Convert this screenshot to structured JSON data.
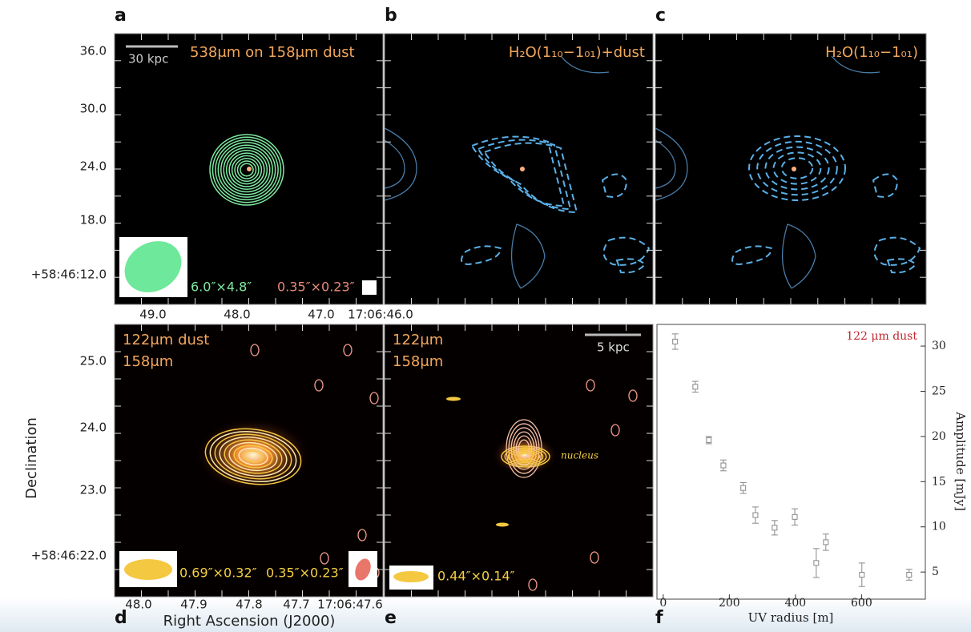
{
  "figure": {
    "panel_labels": [
      "a",
      "b",
      "c",
      "d",
      "e",
      "f"
    ],
    "a": {
      "scale_bar": "30 kpc",
      "title": "538μm on 158μm dust",
      "beam_large": "6.0″×4.8″",
      "beam_small": "0.35″×0.23″"
    },
    "b": {
      "title": "H₂O(1₁₀−1₀₁)+dust"
    },
    "c": {
      "title": "H₂O(1₁₀−1₀₁)"
    },
    "d": {
      "title_1": "122μm dust",
      "title_2": "158μm",
      "beam_1": "0.69″×0.32″",
      "beam_2": "0.35″×0.23″"
    },
    "e": {
      "title_1": "122μm",
      "title_2": "158μm",
      "scale_bar": "5 kpc",
      "annotation": "nucleus",
      "beam": "0.44″×0.14″"
    },
    "top_yticks": [
      "36.0",
      "30.0",
      "24.0",
      "18.0",
      "+58:46:12.0"
    ],
    "top_xticks": [
      "49.0",
      "48.0",
      "47.0",
      "17:06:46.0"
    ],
    "bottom_yticks": [
      "25.0",
      "24.0",
      "23.0",
      "+58:46:22.0"
    ],
    "bottom_xticks": [
      "48.0",
      "47.9",
      "47.8",
      "47.7",
      "17:06:47.6"
    ],
    "ylabel": "Declination",
    "xlabel": "Right Ascension (J2000)"
  },
  "chart_data": {
    "type": "scatter",
    "annotation": "122 μm dust",
    "xlabel": "UV radius [m]",
    "ylabel": "Amplitude [mJy]",
    "x": [
      36,
      97,
      138,
      182,
      242,
      279,
      337,
      398,
      463,
      492,
      601,
      744
    ],
    "values": [
      30.5,
      25.5,
      19.6,
      16.8,
      14.3,
      11.3,
      9.9,
      11.1,
      6.0,
      8.3,
      4.7,
      4.7
    ],
    "errors": [
      0.85,
      0.6,
      0.4,
      0.6,
      0.6,
      0.9,
      0.8,
      0.9,
      1.6,
      0.9,
      1.3,
      0.6
    ],
    "color": "#888888",
    "xlim": [
      -19,
      793
    ],
    "ylim": [
      2,
      32.4
    ],
    "xticks": [
      0,
      200,
      400,
      600
    ],
    "yticks": [
      5,
      10,
      15,
      20,
      25,
      30
    ]
  }
}
